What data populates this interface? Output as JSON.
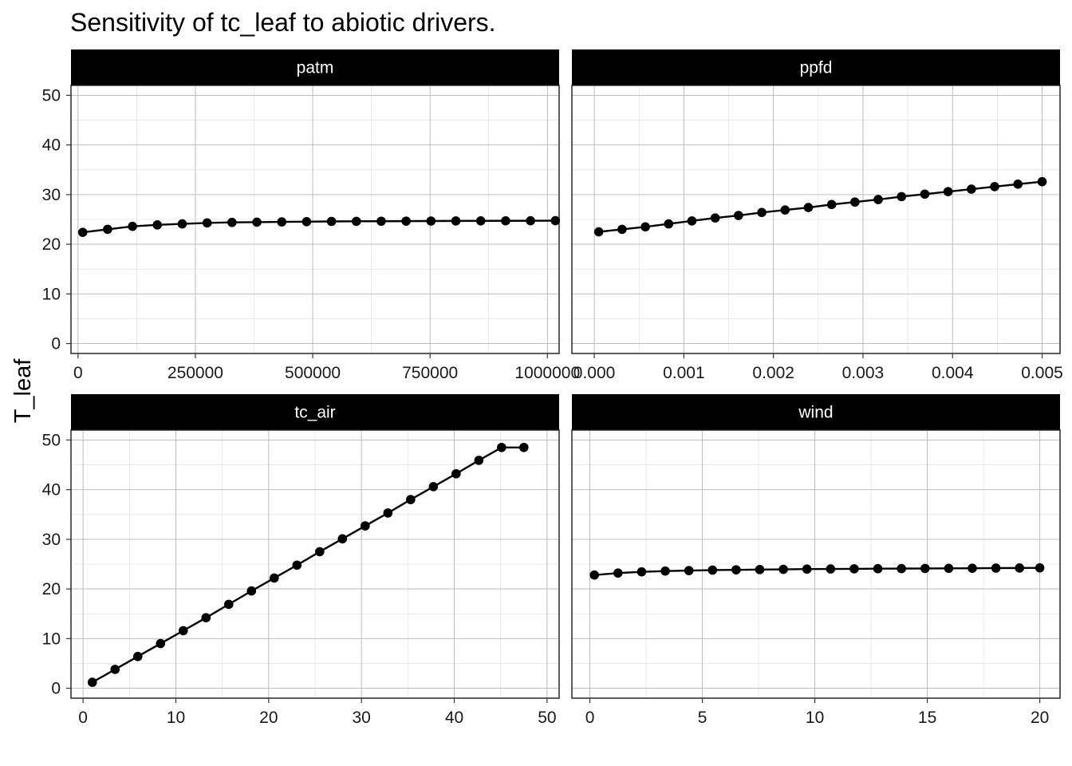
{
  "chart_data": {
    "type": "line",
    "title": "Sensitivity of tc_leaf to abiotic drivers.",
    "ylabel": "T_leaf",
    "ylim": [
      -2,
      52
    ],
    "yticks": [
      0,
      10,
      20,
      30,
      40,
      50
    ],
    "ytick_labels": [
      "0",
      "10",
      "20",
      "30",
      "40",
      "50"
    ],
    "grid": true,
    "legend": "none",
    "line_color": "#000000",
    "strip_color": "#000000",
    "panels": [
      {
        "name": "patm",
        "strip_label": "patm",
        "xlim": [
          -15000,
          1025000
        ],
        "xticks": [
          0,
          250000,
          500000,
          750000,
          1000000
        ],
        "xtick_labels": [
          "0",
          "250000",
          "500000",
          "750000",
          "1000000"
        ],
        "x": [
          10000,
          63000,
          116000,
          169000,
          222000,
          275000,
          328000,
          381000,
          434000,
          487000,
          540000,
          593000,
          646000,
          699000,
          752000,
          805000,
          858000,
          911000,
          964000,
          1017000
        ],
        "y": [
          22.4,
          23.0,
          23.6,
          23.9,
          24.1,
          24.3,
          24.4,
          24.45,
          24.5,
          24.55,
          24.6,
          24.62,
          24.64,
          24.66,
          24.68,
          24.7,
          24.71,
          24.72,
          24.73,
          24.75
        ]
      },
      {
        "name": "ppfd",
        "strip_label": "ppfd",
        "xlim": [
          -0.00025,
          0.0052
        ],
        "xticks": [
          0,
          0.001,
          0.002,
          0.003,
          0.004,
          0.005
        ],
        "xtick_labels": [
          "0.000",
          "0.001",
          "0.002",
          "0.003",
          "0.004",
          "0.005"
        ],
        "x": [
          5e-05,
          0.00031,
          0.00057,
          0.00083,
          0.00109,
          0.00135,
          0.00161,
          0.00187,
          0.00213,
          0.00239,
          0.00265,
          0.00291,
          0.00317,
          0.00343,
          0.00369,
          0.00395,
          0.00421,
          0.00447,
          0.00473,
          0.005
        ],
        "y": [
          22.5,
          23.0,
          23.5,
          24.1,
          24.7,
          25.3,
          25.8,
          26.4,
          26.9,
          27.4,
          28.0,
          28.5,
          29.0,
          29.6,
          30.1,
          30.6,
          31.1,
          31.6,
          32.1,
          32.6
        ]
      },
      {
        "name": "tc_air",
        "strip_label": "tc_air",
        "xlim": [
          -1.3,
          51.3
        ],
        "xticks": [
          0,
          10,
          20,
          30,
          40,
          50
        ],
        "xtick_labels": [
          "0",
          "10",
          "20",
          "30",
          "40",
          "50"
        ],
        "x": [
          1.0,
          3.45,
          5.9,
          8.35,
          10.8,
          13.25,
          15.7,
          18.15,
          20.6,
          23.05,
          25.5,
          27.95,
          30.4,
          32.85,
          35.3,
          37.75,
          40.2,
          42.65,
          45.1,
          47.5
        ],
        "y": [
          1.2,
          3.8,
          6.4,
          9.0,
          11.6,
          14.2,
          16.9,
          19.6,
          22.2,
          24.8,
          27.5,
          30.1,
          32.7,
          35.3,
          38.0,
          40.6,
          43.2,
          45.9,
          48.5,
          48.5
        ]
      },
      {
        "name": "wind",
        "strip_label": "wind",
        "xlim": [
          -0.8,
          20.9
        ],
        "xticks": [
          0,
          5,
          10,
          15,
          20
        ],
        "xtick_labels": [
          "0",
          "5",
          "10",
          "15",
          "20"
        ],
        "x": [
          0.2,
          1.25,
          2.3,
          3.35,
          4.4,
          5.45,
          6.5,
          7.55,
          8.6,
          9.65,
          10.7,
          11.75,
          12.8,
          13.85,
          14.9,
          15.95,
          17.0,
          18.05,
          19.1,
          20.0
        ],
        "y": [
          22.8,
          23.2,
          23.45,
          23.6,
          23.7,
          23.8,
          23.85,
          23.9,
          23.95,
          24.0,
          24.02,
          24.05,
          24.08,
          24.1,
          24.13,
          24.15,
          24.17,
          24.2,
          24.22,
          24.25
        ]
      }
    ]
  }
}
